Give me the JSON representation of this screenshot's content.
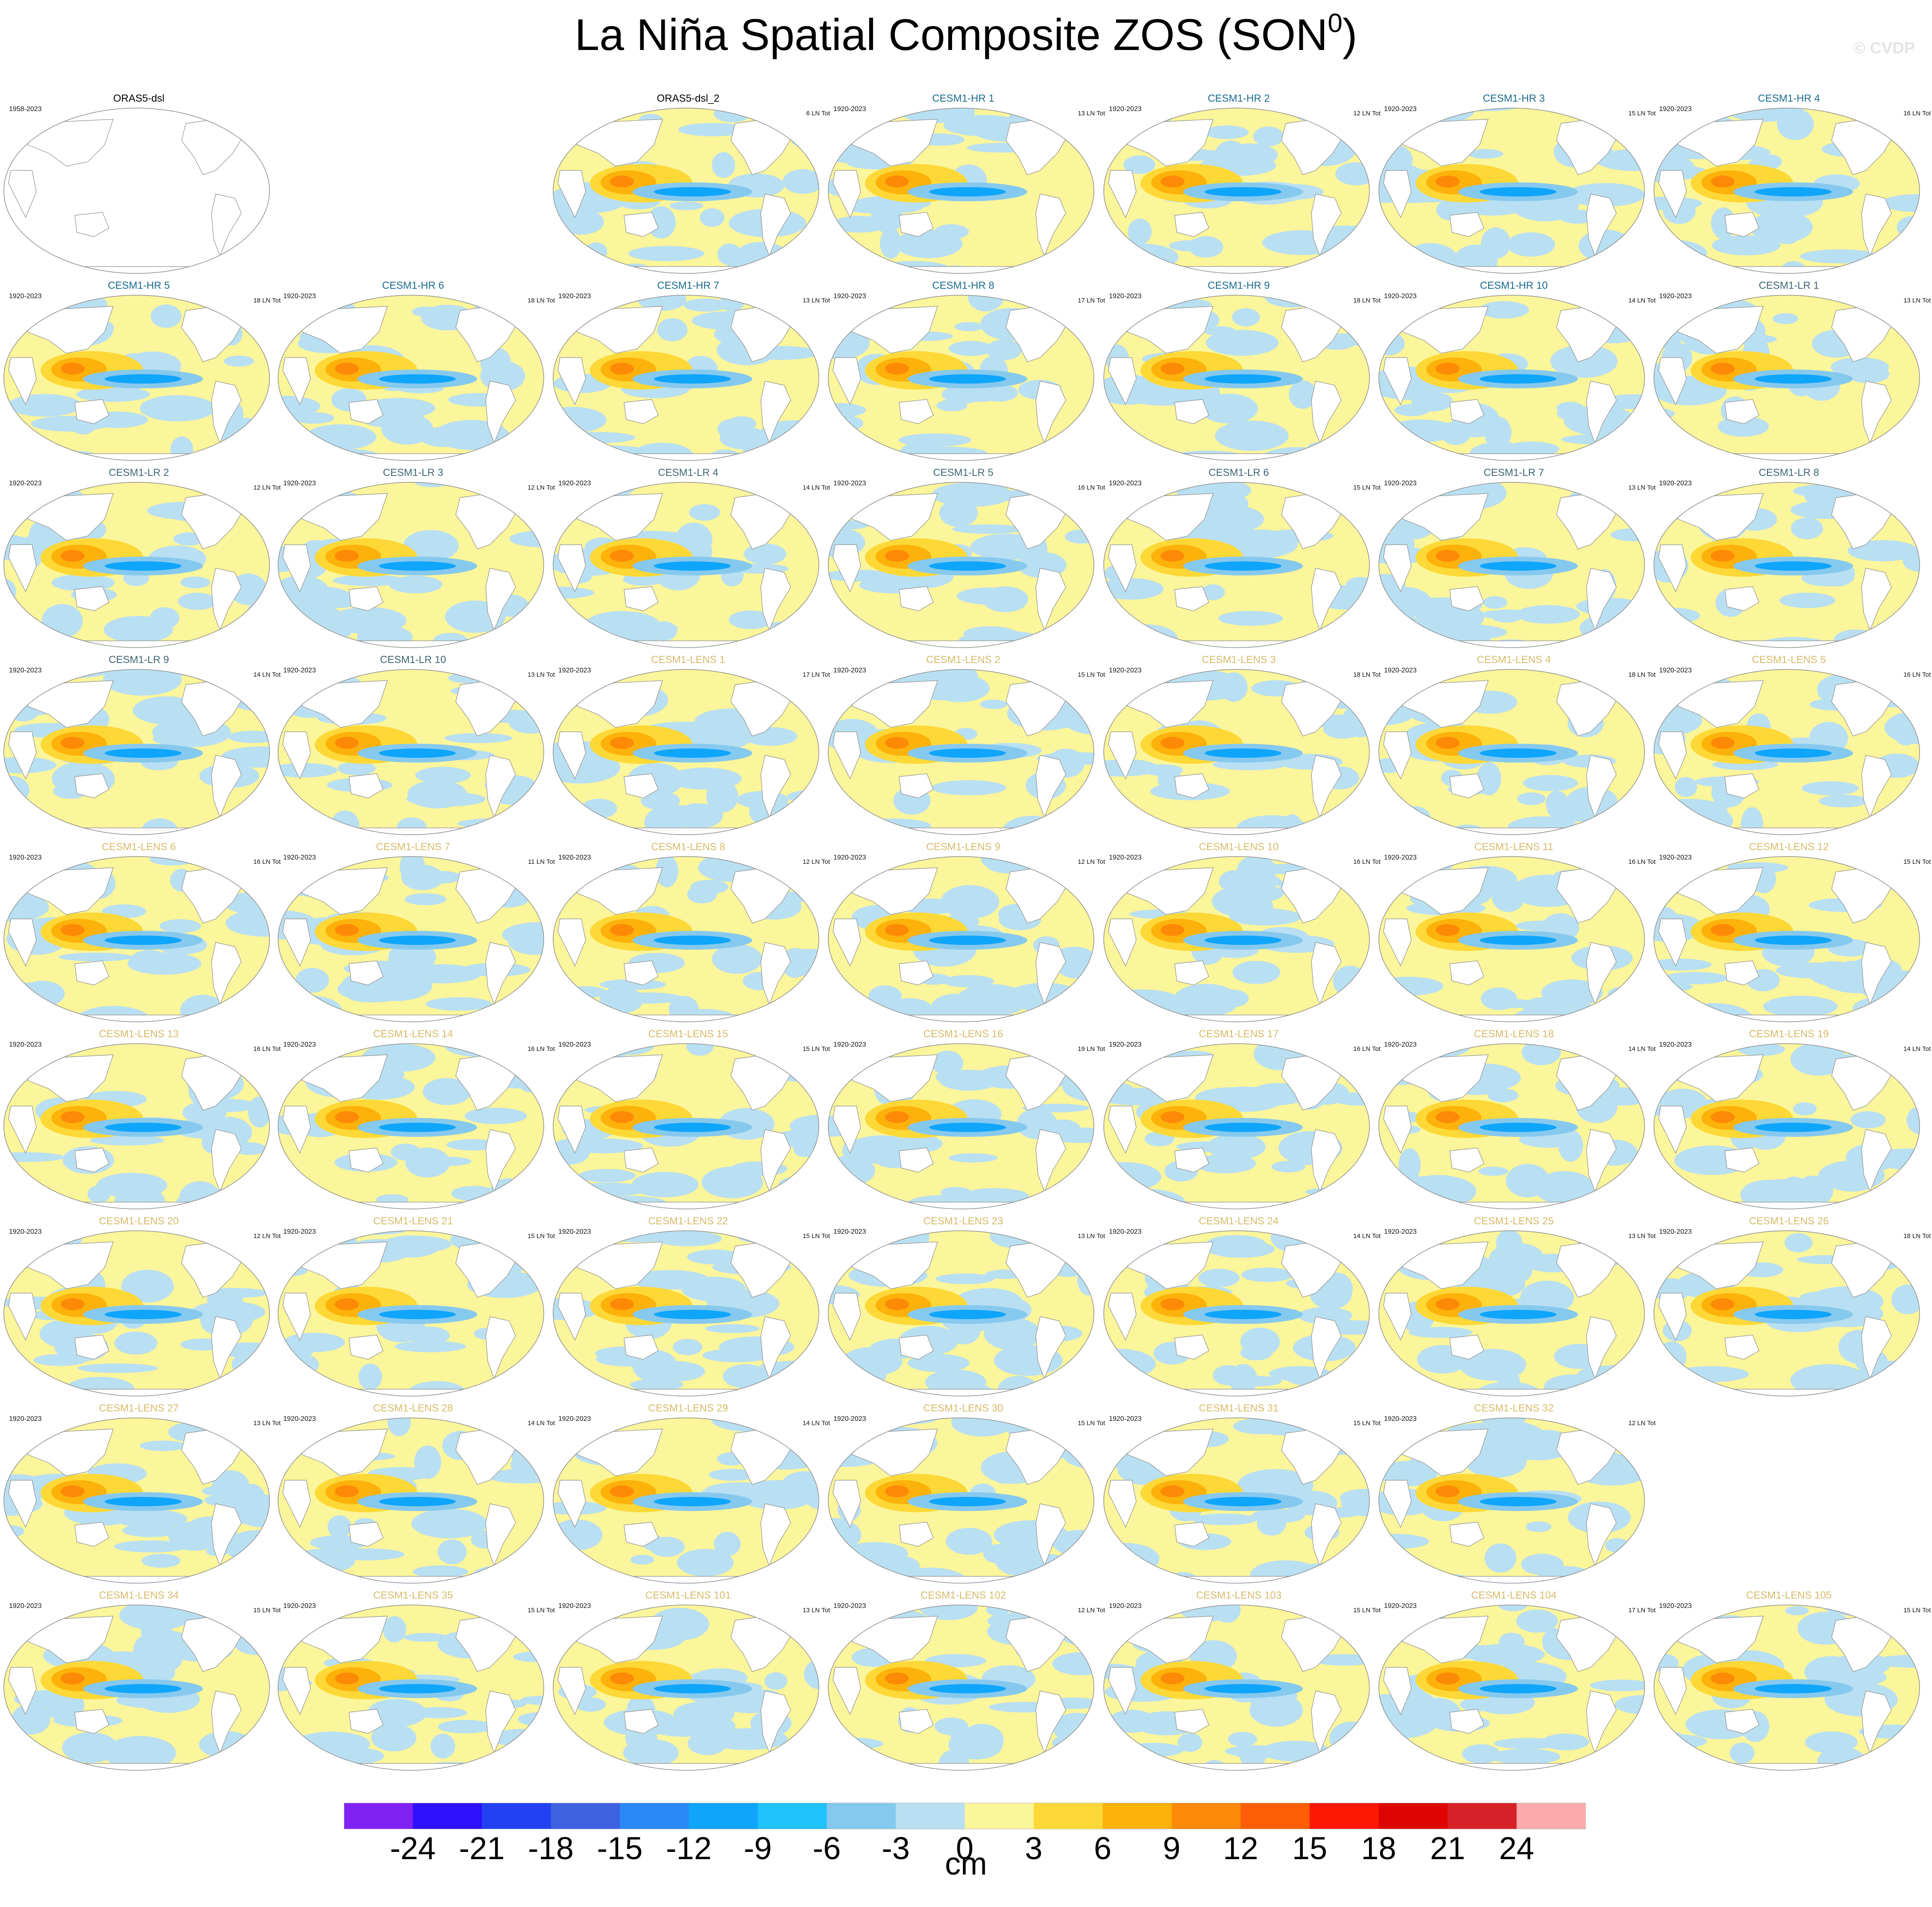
{
  "title": "La Niña Spatial Composite ZOS (SON",
  "title_superscript": "0",
  "title_suffix": ")",
  "watermark": "© CVDP",
  "colors": {
    "hr_title": "#1a6b8c",
    "lr_title": "#3f6675",
    "lens_title": "#d7bb6a",
    "obs_title": "#000000",
    "land": "#ffffff",
    "map_outline": "#8c8c8c"
  },
  "panels": [
    {
      "title": "ORAS5-dsl",
      "years": "1958-2023",
      "count": "",
      "group": "obs",
      "row": 0,
      "col": 0,
      "blank": true
    },
    {
      "title": "ORAS5-dsl_2",
      "years": "",
      "count": "6 LN Tot",
      "group": "obs",
      "row": 0,
      "col": 2
    },
    {
      "title": "CESM1-HR 1",
      "years": "1920-2023",
      "count": "13 LN Tot",
      "group": "hr",
      "row": 0,
      "col": 3
    },
    {
      "title": "CESM1-HR 2",
      "years": "1920-2023",
      "count": "12 LN Tot",
      "group": "hr",
      "row": 0,
      "col": 4
    },
    {
      "title": "CESM1-HR 3",
      "years": "1920-2023",
      "count": "15 LN Tot",
      "group": "hr",
      "row": 0,
      "col": 5
    },
    {
      "title": "CESM1-HR 4",
      "years": "1920-2023",
      "count": "16 LN Tot",
      "group": "hr",
      "row": 0,
      "col": 6
    },
    {
      "title": "CESM1-HR 5",
      "years": "1920-2023",
      "count": "18 LN Tot",
      "group": "hr",
      "row": 1,
      "col": 0
    },
    {
      "title": "CESM1-HR 6",
      "years": "1920-2023",
      "count": "18 LN Tot",
      "group": "hr",
      "row": 1,
      "col": 1
    },
    {
      "title": "CESM1-HR 7",
      "years": "1920-2023",
      "count": "13 LN Tot",
      "group": "hr",
      "row": 1,
      "col": 2
    },
    {
      "title": "CESM1-HR 8",
      "years": "1920-2023",
      "count": "17 LN Tot",
      "group": "hr",
      "row": 1,
      "col": 3
    },
    {
      "title": "CESM1-HR 9",
      "years": "1920-2023",
      "count": "18 LN Tot",
      "group": "hr",
      "row": 1,
      "col": 4
    },
    {
      "title": "CESM1-HR 10",
      "years": "1920-2023",
      "count": "14 LN Tot",
      "group": "hr",
      "row": 1,
      "col": 5
    },
    {
      "title": "CESM1-LR 1",
      "years": "1920-2023",
      "count": "13 LN Tot",
      "group": "lr",
      "row": 1,
      "col": 6
    },
    {
      "title": "CESM1-LR 2",
      "years": "1920-2023",
      "count": "12 LN Tot",
      "group": "lr",
      "row": 2,
      "col": 0
    },
    {
      "title": "CESM1-LR 3",
      "years": "1920-2023",
      "count": "12 LN Tot",
      "group": "lr",
      "row": 2,
      "col": 1
    },
    {
      "title": "CESM1-LR 4",
      "years": "1920-2023",
      "count": "14 LN Tot",
      "group": "lr",
      "row": 2,
      "col": 2
    },
    {
      "title": "CESM1-LR 5",
      "years": "1920-2023",
      "count": "16 LN Tot",
      "group": "lr",
      "row": 2,
      "col": 3
    },
    {
      "title": "CESM1-LR 6",
      "years": "1920-2023",
      "count": "15 LN Tot",
      "group": "lr",
      "row": 2,
      "col": 4
    },
    {
      "title": "CESM1-LR 7",
      "years": "1920-2023",
      "count": "13 LN Tot",
      "group": "lr",
      "row": 2,
      "col": 5
    },
    {
      "title": "CESM1-LR 8",
      "years": "1920-2023",
      "count": "",
      "group": "lr",
      "row": 2,
      "col": 6
    },
    {
      "title": "CESM1-LR 9",
      "years": "1920-2023",
      "count": "14 LN Tot",
      "group": "lr",
      "row": 3,
      "col": 0
    },
    {
      "title": "CESM1-LR 10",
      "years": "1920-2023",
      "count": "13 LN Tot",
      "group": "lr",
      "row": 3,
      "col": 1
    },
    {
      "title": "CESM1-LENS 1",
      "years": "1920-2023",
      "count": "17 LN Tot",
      "group": "lens",
      "row": 3,
      "col": 2
    },
    {
      "title": "CESM1-LENS 2",
      "years": "1920-2023",
      "count": "15 LN Tot",
      "group": "lens",
      "row": 3,
      "col": 3
    },
    {
      "title": "CESM1-LENS 3",
      "years": "1920-2023",
      "count": "18 LN Tot",
      "group": "lens",
      "row": 3,
      "col": 4
    },
    {
      "title": "CESM1-LENS 4",
      "years": "1920-2023",
      "count": "18 LN Tot",
      "group": "lens",
      "row": 3,
      "col": 5
    },
    {
      "title": "CESM1-LENS 5",
      "years": "1920-2023",
      "count": "16 LN Tot",
      "group": "lens",
      "row": 3,
      "col": 6
    },
    {
      "title": "CESM1-LENS 6",
      "years": "1920-2023",
      "count": "16 LN Tot",
      "group": "lens",
      "row": 4,
      "col": 0
    },
    {
      "title": "CESM1-LENS 7",
      "years": "1920-2023",
      "count": "11 LN Tot",
      "group": "lens",
      "row": 4,
      "col": 1
    },
    {
      "title": "CESM1-LENS 8",
      "years": "1920-2023",
      "count": "12 LN Tot",
      "group": "lens",
      "row": 4,
      "col": 2
    },
    {
      "title": "CESM1-LENS 9",
      "years": "1920-2023",
      "count": "12 LN Tot",
      "group": "lens",
      "row": 4,
      "col": 3
    },
    {
      "title": "CESM1-LENS 10",
      "years": "1920-2023",
      "count": "16 LN Tot",
      "group": "lens",
      "row": 4,
      "col": 4
    },
    {
      "title": "CESM1-LENS 11",
      "years": "1920-2023",
      "count": "16 LN Tot",
      "group": "lens",
      "row": 4,
      "col": 5
    },
    {
      "title": "CESM1-LENS 12",
      "years": "1920-2023",
      "count": "15 LN Tot",
      "group": "lens",
      "row": 4,
      "col": 6
    },
    {
      "title": "CESM1-LENS 13",
      "years": "1920-2023",
      "count": "16 LN Tot",
      "group": "lens",
      "row": 5,
      "col": 0
    },
    {
      "title": "CESM1-LENS 14",
      "years": "1920-2023",
      "count": "16 LN Tot",
      "group": "lens",
      "row": 5,
      "col": 1
    },
    {
      "title": "CESM1-LENS 15",
      "years": "1920-2023",
      "count": "15 LN Tot",
      "group": "lens",
      "row": 5,
      "col": 2
    },
    {
      "title": "CESM1-LENS 16",
      "years": "1920-2023",
      "count": "19 LN Tot",
      "group": "lens",
      "row": 5,
      "col": 3
    },
    {
      "title": "CESM1-LENS 17",
      "years": "1920-2023",
      "count": "16 LN Tot",
      "group": "lens",
      "row": 5,
      "col": 4
    },
    {
      "title": "CESM1-LENS 18",
      "years": "1920-2023",
      "count": "14 LN Tot",
      "group": "lens",
      "row": 5,
      "col": 5
    },
    {
      "title": "CESM1-LENS 19",
      "years": "1920-2023",
      "count": "14 LN Tot",
      "group": "lens",
      "row": 5,
      "col": 6
    },
    {
      "title": "CESM1-LENS 20",
      "years": "1920-2023",
      "count": "12 LN Tot",
      "group": "lens",
      "row": 6,
      "col": 0
    },
    {
      "title": "CESM1-LENS 21",
      "years": "1920-2023",
      "count": "15 LN Tot",
      "group": "lens",
      "row": 6,
      "col": 1
    },
    {
      "title": "CESM1-LENS 22",
      "years": "1920-2023",
      "count": "15 LN Tot",
      "group": "lens",
      "row": 6,
      "col": 2
    },
    {
      "title": "CESM1-LENS 23",
      "years": "1920-2023",
      "count": "13 LN Tot",
      "group": "lens",
      "row": 6,
      "col": 3
    },
    {
      "title": "CESM1-LENS 24",
      "years": "1920-2023",
      "count": "14 LN Tot",
      "group": "lens",
      "row": 6,
      "col": 4
    },
    {
      "title": "CESM1-LENS 25",
      "years": "1920-2023",
      "count": "13 LN Tot",
      "group": "lens",
      "row": 6,
      "col": 5
    },
    {
      "title": "CESM1-LENS 26",
      "years": "1920-2023",
      "count": "18 LN Tot",
      "group": "lens",
      "row": 6,
      "col": 6
    },
    {
      "title": "CESM1-LENS 27",
      "years": "1920-2023",
      "count": "13 LN Tot",
      "group": "lens",
      "row": 7,
      "col": 0
    },
    {
      "title": "CESM1-LENS 28",
      "years": "1920-2023",
      "count": "14 LN Tot",
      "group": "lens",
      "row": 7,
      "col": 1
    },
    {
      "title": "CESM1-LENS 29",
      "years": "1920-2023",
      "count": "14 LN Tot",
      "group": "lens",
      "row": 7,
      "col": 2
    },
    {
      "title": "CESM1-LENS 30",
      "years": "1920-2023",
      "count": "15 LN Tot",
      "group": "lens",
      "row": 7,
      "col": 3
    },
    {
      "title": "CESM1-LENS 31",
      "years": "1920-2023",
      "count": "15 LN Tot",
      "group": "lens",
      "row": 7,
      "col": 4
    },
    {
      "title": "CESM1-LENS 32",
      "years": "1920-2023",
      "count": "12 LN Tot",
      "group": "lens",
      "row": 7,
      "col": 5
    },
    {
      "title": "CESM1-LENS 34",
      "years": "1920-2023",
      "count": "15 LN Tot",
      "group": "lens",
      "row": 8,
      "col": 0
    },
    {
      "title": "CESM1-LENS 35",
      "years": "1920-2023",
      "count": "15 LN Tot",
      "group": "lens",
      "row": 8,
      "col": 1
    },
    {
      "title": "CESM1-LENS 101",
      "years": "1920-2023",
      "count": "13 LN Tot",
      "group": "lens",
      "row": 8,
      "col": 2
    },
    {
      "title": "CESM1-LENS 102",
      "years": "1920-2023",
      "count": "12 LN Tot",
      "group": "lens",
      "row": 8,
      "col": 3
    },
    {
      "title": "CESM1-LENS 103",
      "years": "1920-2023",
      "count": "15 LN Tot",
      "group": "lens",
      "row": 8,
      "col": 4
    },
    {
      "title": "CESM1-LENS 104",
      "years": "1920-2023",
      "count": "17 LN Tot",
      "group": "lens",
      "row": 8,
      "col": 5
    },
    {
      "title": "CESM1-LENS 105",
      "years": "1920-2023",
      "count": "15 LN Tot",
      "group": "lens",
      "row": 8,
      "col": 6
    }
  ],
  "chart_data": {
    "type": "heatmap",
    "title": "La Niña Spatial Composite ZOS (SON0)",
    "colorbar": {
      "unit": "cm",
      "tick_labels": [
        "-24",
        "-21",
        "-18",
        "-15",
        "-12",
        "-9",
        "-6",
        "-3",
        "0",
        "3",
        "6",
        "9",
        "12",
        "15",
        "18",
        "21",
        "24"
      ],
      "colors": [
        "#8122f5",
        "#2f10fb",
        "#2141f2",
        "#3c62e1",
        "#2a88f8",
        "#0fa5fb",
        "#1fc2fb",
        "#86c9ee",
        "#b9dff2",
        "#fbf59b",
        "#fdd836",
        "#fdb10b",
        "#fd8a06",
        "#fd5e05",
        "#fd1705",
        "#dd0403",
        "#d62129",
        "#feaaab"
      ]
    }
  }
}
